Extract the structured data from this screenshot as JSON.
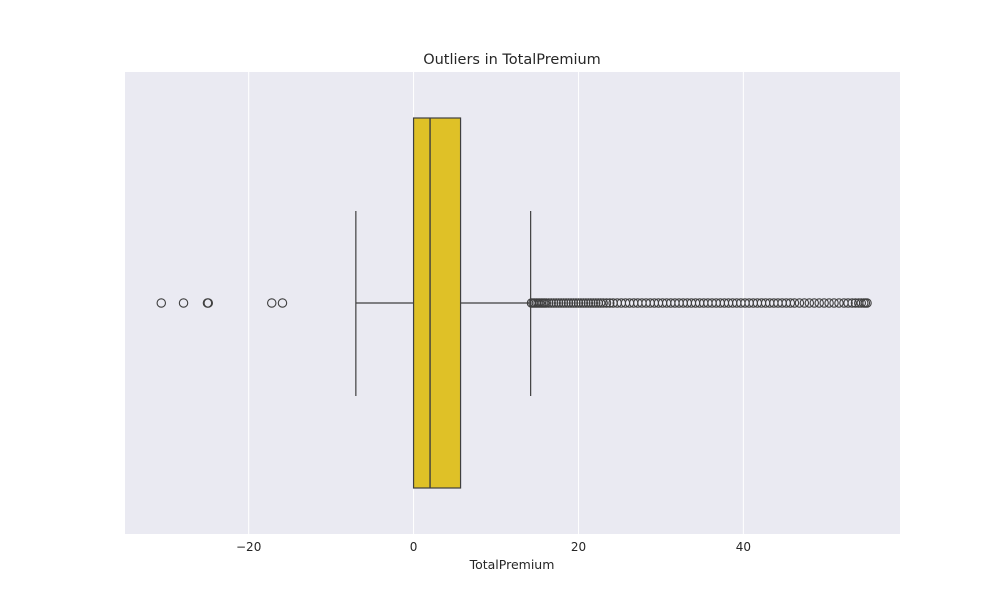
{
  "chart_data": {
    "type": "boxplot",
    "orientation": "horizontal",
    "title": "Outliers in TotalPremium",
    "xlabel": "TotalPremium",
    "ylabel": "",
    "xlim": [
      -35,
      59
    ],
    "xticks": [
      -20,
      0,
      20,
      40
    ],
    "xtick_labels": [
      "−20",
      "0",
      "20",
      "40"
    ],
    "grid": true,
    "grid_axis": "x",
    "background": "#eaeaf2",
    "box_color": "#dfc127",
    "line_color": "#3f3f3f",
    "box": {
      "whisker_low": -7,
      "q1": 0,
      "median": 2,
      "q3": 5.7,
      "whisker_high": 14.2
    },
    "outliers": [
      -30.6,
      -27.9,
      -25,
      -24.9,
      -17.2,
      -15.9,
      14.3,
      14.5,
      14.7,
      14.9,
      15.1,
      15.3,
      15.5,
      15.7,
      15.9,
      16.1,
      16.4,
      16.7,
      17.0,
      17.3,
      17.6,
      17.9,
      18.2,
      18.5,
      18.8,
      19.1,
      19.4,
      19.7,
      20.0,
      20.3,
      20.6,
      20.9,
      21.2,
      21.5,
      21.8,
      22.1,
      22.4,
      22.7,
      23.0,
      23.4,
      23.8,
      24.2,
      24.7,
      25.2,
      25.7,
      26.2,
      26.7,
      27.2,
      27.7,
      28.2,
      28.7,
      29.2,
      29.7,
      30.2,
      30.7,
      31.2,
      31.7,
      32.2,
      32.7,
      33.2,
      33.7,
      34.2,
      34.7,
      35.2,
      35.7,
      36.2,
      36.7,
      37.2,
      37.7,
      38.2,
      38.7,
      39.2,
      39.7,
      40.2,
      40.7,
      41.2,
      41.7,
      42.2,
      42.7,
      43.2,
      43.7,
      44.2,
      44.7,
      45.2,
      45.7,
      46.2,
      46.8,
      47.4,
      48.0,
      48.6,
      49.2,
      49.8,
      50.4,
      51.0,
      51.6,
      52.2,
      52.7,
      53.2,
      53.6,
      54.0,
      54.3,
      54.6,
      54.8,
      55.0
    ]
  }
}
